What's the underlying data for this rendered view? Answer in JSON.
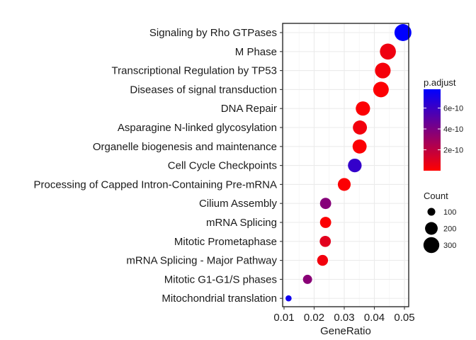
{
  "chart_data": {
    "type": "scatter",
    "xlabel": "GeneRatio",
    "ylabel": "",
    "title": "",
    "xlim": [
      0.01,
      0.05
    ],
    "xticks": [
      0.01,
      0.02,
      0.03,
      0.04,
      0.05
    ],
    "xtick_labels": [
      "0.01",
      "0.02",
      "0.03",
      "0.04",
      "0.05"
    ],
    "grid": true,
    "categories": [
      "Signaling by Rho GTPases",
      "M Phase",
      "Transcriptional Regulation by TP53",
      "Diseases of signal transduction",
      "DNA Repair",
      "Asparagine N-linked glycosylation",
      "Organelle biogenesis and maintenance",
      "Cell Cycle Checkpoints",
      "Processing of Capped Intron-Containing Pre-mRNA",
      "Cilium Assembly",
      "mRNA Splicing",
      "Mitotic Prometaphase",
      "mRNA Splicing - Major Pathway",
      "Mitotic G1-G1/S phases",
      "Mitochondrial translation"
    ],
    "points": [
      {
        "category": "Signaling by Rho GTPases",
        "gene_ratio": 0.0495,
        "count": 340,
        "p_adjust": 7.8e-10
      },
      {
        "category": "M Phase",
        "gene_ratio": 0.0445,
        "count": 305,
        "p_adjust": 5e-11
      },
      {
        "category": "Transcriptional Regulation by TP53",
        "gene_ratio": 0.0428,
        "count": 293,
        "p_adjust": 3e-11
      },
      {
        "category": "Diseases of signal transduction",
        "gene_ratio": 0.0422,
        "count": 289,
        "p_adjust": 1e-11
      },
      {
        "category": "DNA Repair",
        "gene_ratio": 0.0362,
        "count": 248,
        "p_adjust": 1e-11
      },
      {
        "category": "Asparagine N-linked glycosylation",
        "gene_ratio": 0.0352,
        "count": 241,
        "p_adjust": 4e-11
      },
      {
        "category": "Organelle biogenesis and maintenance",
        "gene_ratio": 0.0351,
        "count": 240,
        "p_adjust": 1e-11
      },
      {
        "category": "Cell Cycle Checkpoints",
        "gene_ratio": 0.0335,
        "count": 229,
        "p_adjust": 6.2e-10
      },
      {
        "category": "Processing of Capped Intron-Containing Pre-mRNA",
        "gene_ratio": 0.03,
        "count": 205,
        "p_adjust": 1e-11
      },
      {
        "category": "Cilium Assembly",
        "gene_ratio": 0.0238,
        "count": 163,
        "p_adjust": 3.7e-10
      },
      {
        "category": "mRNA Splicing",
        "gene_ratio": 0.0238,
        "count": 163,
        "p_adjust": 1e-11
      },
      {
        "category": "Mitotic Prometaphase",
        "gene_ratio": 0.0237,
        "count": 162,
        "p_adjust": 9e-11
      },
      {
        "category": "mRNA Splicing - Major Pathway",
        "gene_ratio": 0.0228,
        "count": 156,
        "p_adjust": 4e-11
      },
      {
        "category": "Mitotic G1-G1/S phases",
        "gene_ratio": 0.0178,
        "count": 122,
        "p_adjust": 3.6e-10
      },
      {
        "category": "Mitochondrial translation",
        "gene_ratio": 0.0115,
        "count": 79,
        "p_adjust": 7.3e-10
      }
    ],
    "color_legend": {
      "title": "p.adjust",
      "domain": [
        0,
        7.8e-10
      ],
      "ticks": [
        2e-10,
        4e-10,
        6e-10
      ],
      "tick_labels": [
        "2e-10",
        "4e-10",
        "6e-10"
      ],
      "low_color": "#ff0000",
      "high_color": "#0000ff"
    },
    "size_legend": {
      "title": "Count",
      "values": [
        100,
        200,
        300
      ],
      "labels": [
        "100",
        "200",
        "300"
      ]
    }
  }
}
